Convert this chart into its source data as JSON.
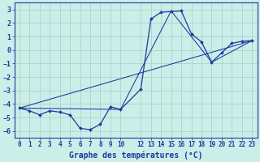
{
  "xlabel": "Graphe des températures (°C)",
  "bg_color": "#cceee8",
  "grid_color": "#aad4cc",
  "line_color": "#1a3a9f",
  "spine_color": "#1a3a9f",
  "xlim": [
    -0.5,
    23.5
  ],
  "ylim": [
    -6.5,
    3.5
  ],
  "yticks": [
    -6,
    -5,
    -4,
    -3,
    -2,
    -1,
    0,
    1,
    2,
    3
  ],
  "xtick_positions": [
    0,
    1,
    2,
    3,
    4,
    5,
    6,
    7,
    8,
    9,
    10,
    12,
    13,
    14,
    15,
    16,
    17,
    18,
    19,
    20,
    21,
    22,
    23
  ],
  "xtick_labels": [
    "0",
    "1",
    "2",
    "3",
    "4",
    "5",
    "6",
    "7",
    "8",
    "9",
    "10",
    "12",
    "13",
    "14",
    "15",
    "16",
    "17",
    "18",
    "19",
    "20",
    "21",
    "22",
    "23"
  ],
  "curve1_x": [
    0,
    1,
    2,
    3,
    4,
    5,
    6,
    7,
    8,
    9,
    10,
    12,
    13,
    14,
    15,
    16,
    17,
    18,
    19,
    20,
    21,
    22,
    23
  ],
  "curve1_y": [
    -4.3,
    -4.5,
    -4.8,
    -4.5,
    -4.6,
    -4.8,
    -5.8,
    -5.9,
    -5.5,
    -4.2,
    -4.4,
    -2.9,
    2.3,
    2.8,
    2.85,
    2.9,
    1.2,
    0.6,
    -0.9,
    -0.2,
    0.5,
    0.65,
    0.7
  ],
  "curve2_x": [
    0,
    10,
    15,
    19,
    23
  ],
  "curve2_y": [
    -4.3,
    -4.4,
    2.9,
    -0.9,
    0.7
  ],
  "curve3_x": [
    0,
    23
  ],
  "curve3_y": [
    -4.3,
    0.7
  ],
  "tick_fontsize": 5.5,
  "xlabel_fontsize": 7,
  "marker_size": 2.0,
  "linewidth": 0.9
}
